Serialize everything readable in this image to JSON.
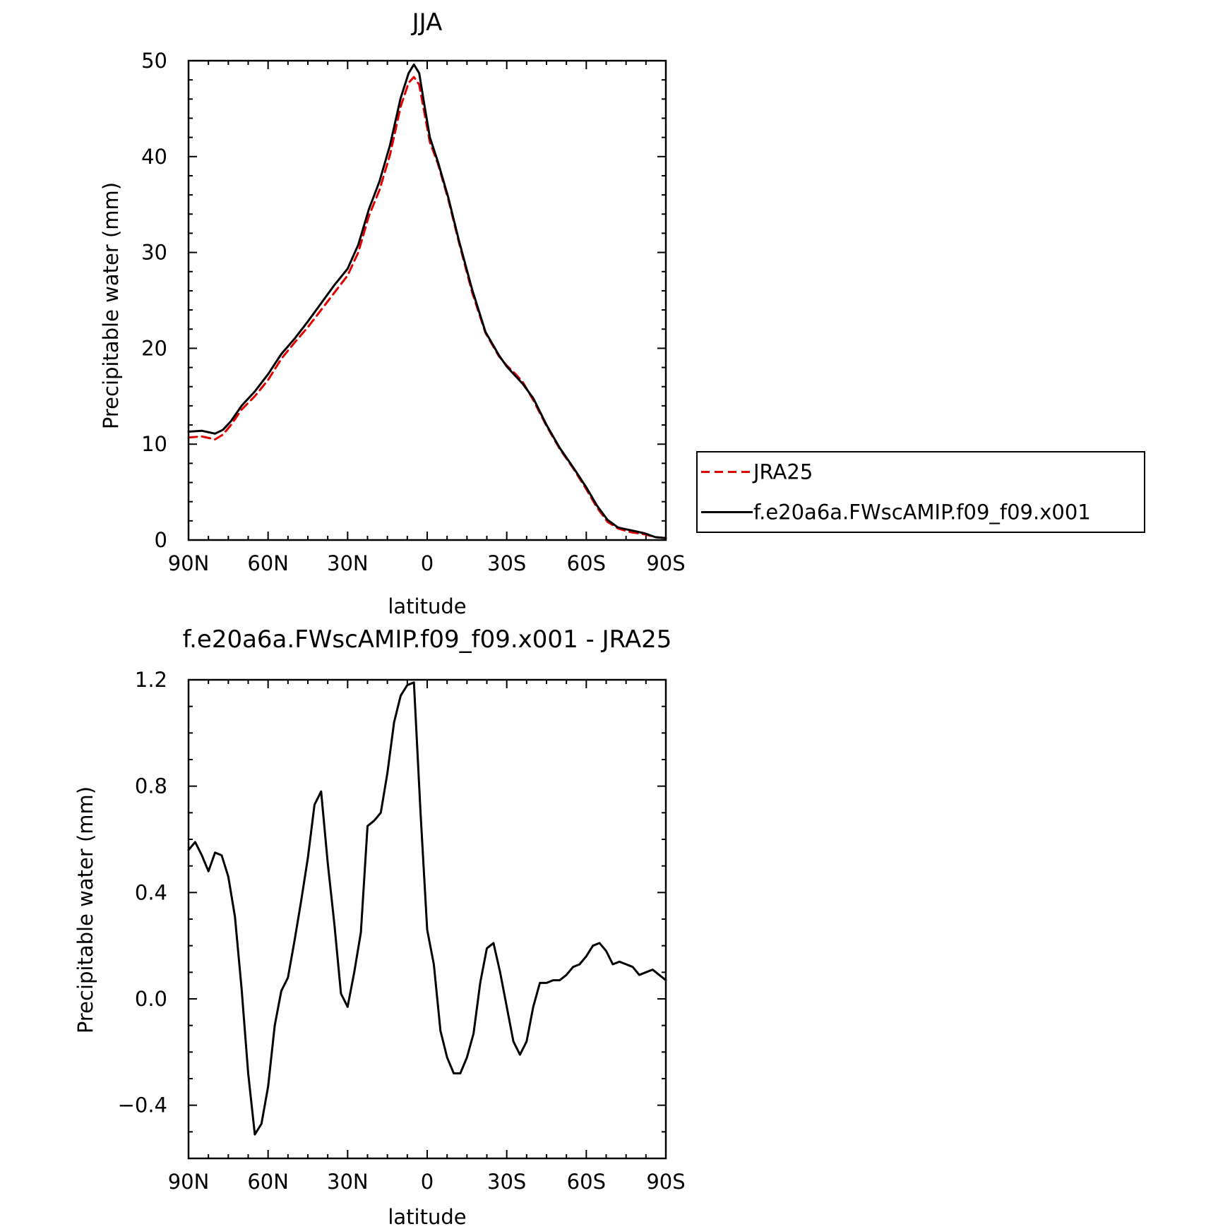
{
  "chart_data": [
    {
      "type": "line",
      "title": "JJA",
      "xlabel": "latitude",
      "ylabel": "Precipitable water (mm)",
      "xlim": [
        90,
        -90
      ],
      "ylim": [
        0,
        50
      ],
      "x_ticks": [
        {
          "value": 90,
          "label": "90N"
        },
        {
          "value": 60,
          "label": "60N"
        },
        {
          "value": 30,
          "label": "30N"
        },
        {
          "value": 0,
          "label": "0"
        },
        {
          "value": -30,
          "label": "30S"
        },
        {
          "value": -60,
          "label": "60S"
        },
        {
          "value": -90,
          "label": "90S"
        }
      ],
      "y_ticks": [
        {
          "value": 0,
          "label": "0"
        },
        {
          "value": 10,
          "label": "10"
        },
        {
          "value": 20,
          "label": "20"
        },
        {
          "value": 30,
          "label": "30"
        },
        {
          "value": 40,
          "label": "40"
        },
        {
          "value": 50,
          "label": "50"
        }
      ],
      "legend_position": "right",
      "series": [
        {
          "name": "JRA25",
          "color": "#e00000",
          "dash": "dashed",
          "points": [
            [
              90,
              10.7
            ],
            [
              85,
              10.8
            ],
            [
              80,
              10.5
            ],
            [
              77,
              11.0
            ],
            [
              74,
              12.0
            ],
            [
              70,
              13.6
            ],
            [
              65,
              15.0
            ],
            [
              60,
              16.7
            ],
            [
              55,
              18.9
            ],
            [
              50,
              20.6
            ],
            [
              45,
              22.2
            ],
            [
              40,
              24.0
            ],
            [
              35,
              25.8
            ],
            [
              30,
              27.6
            ],
            [
              26,
              30.0
            ],
            [
              22,
              33.8
            ],
            [
              18,
              36.5
            ],
            [
              14,
              40.2
            ],
            [
              10,
              45.2
            ],
            [
              7,
              47.7
            ],
            [
              5,
              48.3
            ],
            [
              3,
              47.5
            ],
            [
              1,
              44.5
            ],
            [
              -1,
              41.5
            ],
            [
              -4,
              39.3
            ],
            [
              -8,
              35.5
            ],
            [
              -12,
              31.0
            ],
            [
              -17,
              25.8
            ],
            [
              -22,
              21.6
            ],
            [
              -27,
              19.2
            ],
            [
              -30,
              18.2
            ],
            [
              -33,
              17.4
            ],
            [
              -36,
              16.5
            ],
            [
              -40,
              14.6
            ],
            [
              -45,
              11.9
            ],
            [
              -50,
              9.5
            ],
            [
              -55,
              7.5
            ],
            [
              -60,
              5.3
            ],
            [
              -64,
              3.4
            ],
            [
              -68,
              1.9
            ],
            [
              -72,
              1.2
            ],
            [
              -77,
              0.8
            ],
            [
              -82,
              0.6
            ],
            [
              -86,
              0.3
            ],
            [
              -90,
              0.2
            ]
          ]
        },
        {
          "name": "f.e20a6a.FWscAMIP.f09_f09.x001",
          "color": "#000000",
          "dash": "solid",
          "points": [
            [
              90,
              11.3
            ],
            [
              85,
              11.4
            ],
            [
              80,
              11.1
            ],
            [
              77,
              11.5
            ],
            [
              74,
              12.4
            ],
            [
              70,
              14.0
            ],
            [
              65,
              15.5
            ],
            [
              60,
              17.3
            ],
            [
              55,
              19.4
            ],
            [
              50,
              21.0
            ],
            [
              45,
              22.8
            ],
            [
              40,
              24.7
            ],
            [
              35,
              26.6
            ],
            [
              30,
              28.3
            ],
            [
              26,
              30.8
            ],
            [
              22,
              34.5
            ],
            [
              18,
              37.4
            ],
            [
              14,
              41.2
            ],
            [
              10,
              46.1
            ],
            [
              7,
              48.7
            ],
            [
              5,
              49.6
            ],
            [
              3,
              48.7
            ],
            [
              1,
              45.3
            ],
            [
              -1,
              42.0
            ],
            [
              -4,
              39.5
            ],
            [
              -8,
              35.7
            ],
            [
              -12,
              31.2
            ],
            [
              -17,
              26.1
            ],
            [
              -22,
              21.7
            ],
            [
              -27,
              19.3
            ],
            [
              -30,
              18.1
            ],
            [
              -33,
              17.2
            ],
            [
              -36,
              16.3
            ],
            [
              -40,
              14.8
            ],
            [
              -45,
              12.0
            ],
            [
              -50,
              9.6
            ],
            [
              -55,
              7.6
            ],
            [
              -60,
              5.5
            ],
            [
              -64,
              3.6
            ],
            [
              -68,
              2.1
            ],
            [
              -72,
              1.3
            ],
            [
              -77,
              1.0
            ],
            [
              -82,
              0.7
            ],
            [
              -86,
              0.3
            ],
            [
              -90,
              0.2
            ]
          ]
        }
      ]
    },
    {
      "type": "line",
      "title": "f.e20a6a.FWscAMIP.f09_f09.x001 - JRA25",
      "xlabel": "latitude",
      "ylabel": "Precipitable water (mm)",
      "xlim": [
        90,
        -90
      ],
      "ylim": [
        -0.6,
        1.2
      ],
      "x_ticks": [
        {
          "value": 90,
          "label": "90N"
        },
        {
          "value": 60,
          "label": "60N"
        },
        {
          "value": 30,
          "label": "30N"
        },
        {
          "value": 0,
          "label": "0"
        },
        {
          "value": -30,
          "label": "30S"
        },
        {
          "value": -60,
          "label": "60S"
        },
        {
          "value": -90,
          "label": "90S"
        }
      ],
      "y_ticks": [
        {
          "value": -0.4,
          "label": "-0.4"
        },
        {
          "value": 0.0,
          "label": "0.0"
        },
        {
          "value": 0.4,
          "label": "0.4"
        },
        {
          "value": 0.8,
          "label": "0.8"
        },
        {
          "value": 1.2,
          "label": "1.2"
        }
      ],
      "series": [
        {
          "color": "#000000",
          "dash": "solid",
          "points": [
            [
              90,
              0.56
            ],
            [
              87.5,
              0.59
            ],
            [
              85,
              0.54
            ],
            [
              82.5,
              0.48
            ],
            [
              80,
              0.55
            ],
            [
              77.5,
              0.54
            ],
            [
              75,
              0.46
            ],
            [
              72.5,
              0.31
            ],
            [
              70,
              0.04
            ],
            [
              67.5,
              -0.28
            ],
            [
              65,
              -0.51
            ],
            [
              62.5,
              -0.47
            ],
            [
              60,
              -0.33
            ],
            [
              57.5,
              -0.1
            ],
            [
              55,
              0.03
            ],
            [
              52.5,
              0.08
            ],
            [
              50,
              0.22
            ],
            [
              47.5,
              0.37
            ],
            [
              45,
              0.53
            ],
            [
              42.5,
              0.73
            ],
            [
              40,
              0.78
            ],
            [
              37.5,
              0.51
            ],
            [
              35,
              0.28
            ],
            [
              32.5,
              0.02
            ],
            [
              30,
              -0.03
            ],
            [
              27.5,
              0.1
            ],
            [
              25,
              0.25
            ],
            [
              22.5,
              0.65
            ],
            [
              20,
              0.67
            ],
            [
              17.5,
              0.7
            ],
            [
              15,
              0.85
            ],
            [
              12.5,
              1.04
            ],
            [
              10,
              1.14
            ],
            [
              7.5,
              1.18
            ],
            [
              5,
              1.19
            ],
            [
              2.5,
              0.7
            ],
            [
              0,
              0.26
            ],
            [
              -2.5,
              0.13
            ],
            [
              -5,
              -0.12
            ],
            [
              -7.5,
              -0.22
            ],
            [
              -10,
              -0.28
            ],
            [
              -12.5,
              -0.28
            ],
            [
              -15,
              -0.22
            ],
            [
              -17.5,
              -0.13
            ],
            [
              -20,
              0.06
            ],
            [
              -22.5,
              0.19
            ],
            [
              -25,
              0.21
            ],
            [
              -27.5,
              0.1
            ],
            [
              -30,
              -0.03
            ],
            [
              -32.5,
              -0.16
            ],
            [
              -35,
              -0.21
            ],
            [
              -37.5,
              -0.16
            ],
            [
              -40,
              -0.03
            ],
            [
              -42.5,
              0.06
            ],
            [
              -45,
              0.06
            ],
            [
              -47.5,
              0.07
            ],
            [
              -50,
              0.07
            ],
            [
              -52.5,
              0.09
            ],
            [
              -55,
              0.12
            ],
            [
              -57.5,
              0.13
            ],
            [
              -60,
              0.16
            ],
            [
              -62.5,
              0.2
            ],
            [
              -65,
              0.21
            ],
            [
              -67.5,
              0.18
            ],
            [
              -70,
              0.13
            ],
            [
              -72.5,
              0.14
            ],
            [
              -75,
              0.13
            ],
            [
              -77.5,
              0.12
            ],
            [
              -80,
              0.09
            ],
            [
              -82.5,
              0.1
            ],
            [
              -85,
              0.11
            ],
            [
              -87.5,
              0.09
            ],
            [
              -90,
              0.07
            ]
          ]
        }
      ]
    }
  ]
}
